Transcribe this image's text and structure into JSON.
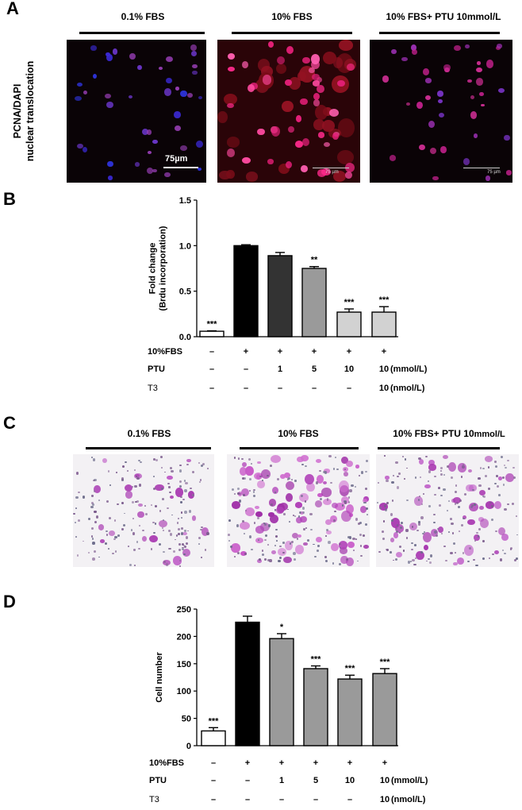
{
  "panel_labels": [
    "A",
    "B",
    "C",
    "D"
  ],
  "panelA": {
    "ylabel_line1": "PCNA/DAPI",
    "ylabel_line2": "nuclear translocation",
    "groups": [
      "0.1% FBS",
      "10% FBS",
      "10% FBS+ PTU 10mmol/L"
    ],
    "scalebar_label": "75µm",
    "scalebar_small": "75 µm"
  },
  "panelC": {
    "groups": [
      "0.1% FBS",
      "10% FBS",
      "10% FBS+ PTU 10"
    ],
    "group3_unit": "mmol/L"
  },
  "chart_data": [
    {
      "type": "bar",
      "ylabel": "Fold change\n(Brdu incorporation)",
      "ylim": [
        0,
        1.5
      ],
      "yticks": [
        0.0,
        0.5,
        1.0,
        1.5
      ],
      "ytick_labels": [
        "0.0",
        "0.5",
        "1.0",
        "1.5"
      ],
      "values": [
        0.06,
        1.0,
        0.89,
        0.75,
        0.27,
        0.27
      ],
      "errors": [
        0.005,
        0.01,
        0.035,
        0.02,
        0.035,
        0.06
      ],
      "fills": [
        "#ffffff",
        "#000000",
        "#333333",
        "#9a9a9a",
        "#d2d2d2",
        "#d2d2d2"
      ],
      "significance": [
        "***",
        "",
        "",
        "**",
        "***",
        "***"
      ],
      "conditions": [
        {
          "label": "10%FBS",
          "values": [
            "–",
            "+",
            "+",
            "+",
            "+",
            "+"
          ],
          "unit": ""
        },
        {
          "label": "PTU",
          "values": [
            "–",
            "–",
            "1",
            "5",
            "10",
            "10"
          ],
          "unit": "(mmol/L)"
        },
        {
          "label": "T3",
          "values": [
            "–",
            "–",
            "–",
            "–",
            "–",
            "10"
          ],
          "unit": "(nmol/L)"
        }
      ]
    },
    {
      "type": "bar",
      "ylabel": "Cell number",
      "ylim": [
        0,
        250
      ],
      "yticks": [
        0,
        50,
        100,
        150,
        200,
        250
      ],
      "ytick_labels": [
        "0",
        "50",
        "100",
        "150",
        "200",
        "250"
      ],
      "values": [
        27,
        226,
        196,
        141,
        122,
        132
      ],
      "errors": [
        6,
        11,
        9,
        5,
        7,
        9
      ],
      "fills": [
        "#ffffff",
        "#000000",
        "#9a9a9a",
        "#9a9a9a",
        "#9a9a9a",
        "#9a9a9a"
      ],
      "significance": [
        "***",
        "",
        "*",
        "***",
        "***",
        "***"
      ],
      "conditions": [
        {
          "label": "10%FBS",
          "values": [
            "–",
            "+",
            "+",
            "+",
            "+",
            "+"
          ],
          "unit": ""
        },
        {
          "label": "PTU",
          "values": [
            "–",
            "–",
            "1",
            "5",
            "10",
            "10"
          ],
          "unit": "(mmol/L)"
        },
        {
          "label": "T3",
          "values": [
            "–",
            "–",
            "–",
            "–",
            "–",
            "10"
          ],
          "unit": "(nmol/L)"
        }
      ]
    }
  ]
}
